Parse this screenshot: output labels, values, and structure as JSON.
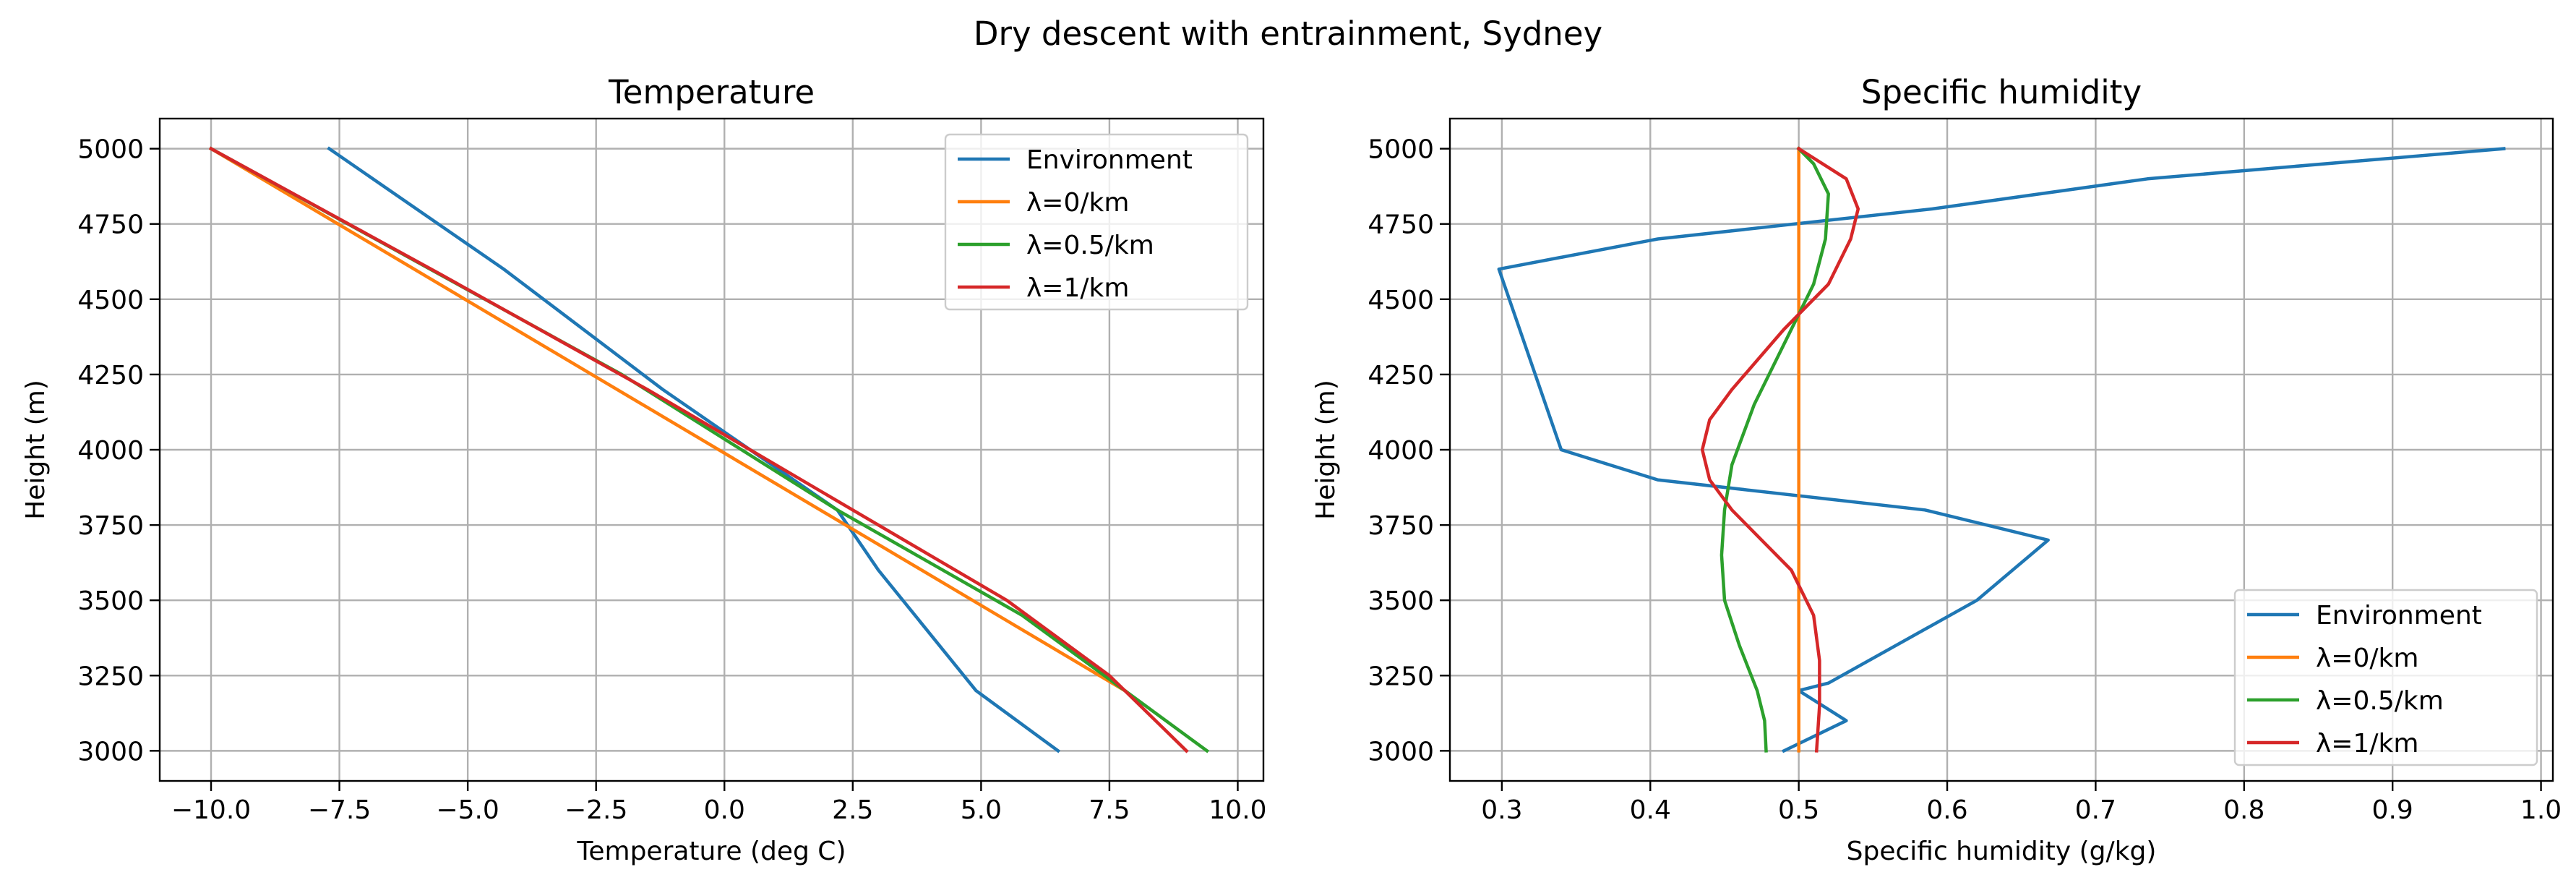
{
  "figure": {
    "suptitle": "Dry descent with entrainment, Sydney"
  },
  "chart_data": [
    {
      "type": "line",
      "title": "Temperature",
      "xlabel": "Temperature (deg C)",
      "ylabel": "Height (m)",
      "xlim": [
        -11.0,
        10.5
      ],
      "ylim": [
        2900,
        5100
      ],
      "xticks": [
        -10.0,
        -7.5,
        -5.0,
        -2.5,
        0.0,
        2.5,
        5.0,
        7.5,
        10.0
      ],
      "xtick_labels": [
        "−10.0",
        "−7.5",
        "−5.0",
        "−2.5",
        "0.0",
        "2.5",
        "5.0",
        "7.5",
        "10.0"
      ],
      "yticks": [
        3000,
        3250,
        3500,
        3750,
        4000,
        4250,
        4500,
        4750,
        5000
      ],
      "ytick_labels": [
        "3000",
        "3250",
        "3500",
        "3750",
        "4000",
        "4250",
        "4500",
        "4750",
        "5000"
      ],
      "grid": true,
      "legend_position": "upper right",
      "series": [
        {
          "name": "Environment",
          "color": "#1f77b4",
          "x": [
            -7.7,
            -4.3,
            -1.2,
            2.2,
            3.0,
            4.9,
            6.5
          ],
          "y": [
            5000,
            4600,
            4200,
            3800,
            3600,
            3200,
            3000
          ]
        },
        {
          "name": "λ=0/km",
          "color": "#ff7f0e",
          "x": [
            -10.0,
            7.8
          ],
          "y": [
            5000,
            3200
          ]
        },
        {
          "name": "λ=0.5/km",
          "color": "#2ca02c",
          "x": [
            -10.0,
            -6.0,
            -2.0,
            2.2,
            5.8,
            9.4
          ],
          "y": [
            5000,
            4625,
            4250,
            3800,
            3450,
            3000
          ]
        },
        {
          "name": "λ=1/km",
          "color": "#d62728",
          "x": [
            -10.0,
            -5.5,
            -1.5,
            2.5,
            5.5,
            7.5,
            9.0
          ],
          "y": [
            5000,
            4580,
            4200,
            3800,
            3500,
            3250,
            3000
          ]
        }
      ]
    },
    {
      "type": "line",
      "title": "Specific humidity",
      "xlabel": "Specific humidity (g/kg)",
      "ylabel": "Height (m)",
      "xlim": [
        0.265,
        1.008
      ],
      "ylim": [
        2900,
        5100
      ],
      "xticks": [
        0.3,
        0.4,
        0.5,
        0.6,
        0.7,
        0.8,
        0.9,
        1.0
      ],
      "xtick_labels": [
        "0.3",
        "0.4",
        "0.5",
        "0.6",
        "0.7",
        "0.8",
        "0.9",
        "1.0"
      ],
      "yticks": [
        3000,
        3250,
        3500,
        3750,
        4000,
        4250,
        4500,
        4750,
        5000
      ],
      "ytick_labels": [
        "3000",
        "3250",
        "3500",
        "3750",
        "4000",
        "4250",
        "4500",
        "4750",
        "5000"
      ],
      "grid": true,
      "legend_position": "lower right",
      "series": [
        {
          "name": "Environment",
          "color": "#1f77b4",
          "x": [
            0.975,
            0.735,
            0.59,
            0.405,
            0.298,
            0.34,
            0.405,
            0.585,
            0.668,
            0.62,
            0.52,
            0.5,
            0.532,
            0.49
          ],
          "y": [
            5000,
            4900,
            4800,
            4700,
            4600,
            4000,
            3900,
            3800,
            3700,
            3500,
            3225,
            3200,
            3100,
            3000
          ]
        },
        {
          "name": "λ=0/km",
          "color": "#ff7f0e",
          "x": [
            0.5,
            0.5
          ],
          "y": [
            5000,
            3000
          ]
        },
        {
          "name": "λ=0.5/km",
          "color": "#2ca02c",
          "x": [
            0.5,
            0.51,
            0.52,
            0.518,
            0.51,
            0.49,
            0.47,
            0.455,
            0.45,
            0.448,
            0.45,
            0.46,
            0.472,
            0.477,
            0.478
          ],
          "y": [
            5000,
            4950,
            4850,
            4700,
            4550,
            4350,
            4150,
            3950,
            3800,
            3650,
            3500,
            3350,
            3200,
            3100,
            3000
          ]
        },
        {
          "name": "λ=1/km",
          "color": "#d62728",
          "x": [
            0.5,
            0.532,
            0.54,
            0.535,
            0.52,
            0.49,
            0.455,
            0.44,
            0.435,
            0.44,
            0.455,
            0.475,
            0.495,
            0.51,
            0.514,
            0.514,
            0.512
          ],
          "y": [
            5000,
            4900,
            4800,
            4700,
            4550,
            4400,
            4200,
            4100,
            4000,
            3900,
            3800,
            3700,
            3600,
            3450,
            3300,
            3150,
            3000
          ]
        }
      ]
    }
  ]
}
